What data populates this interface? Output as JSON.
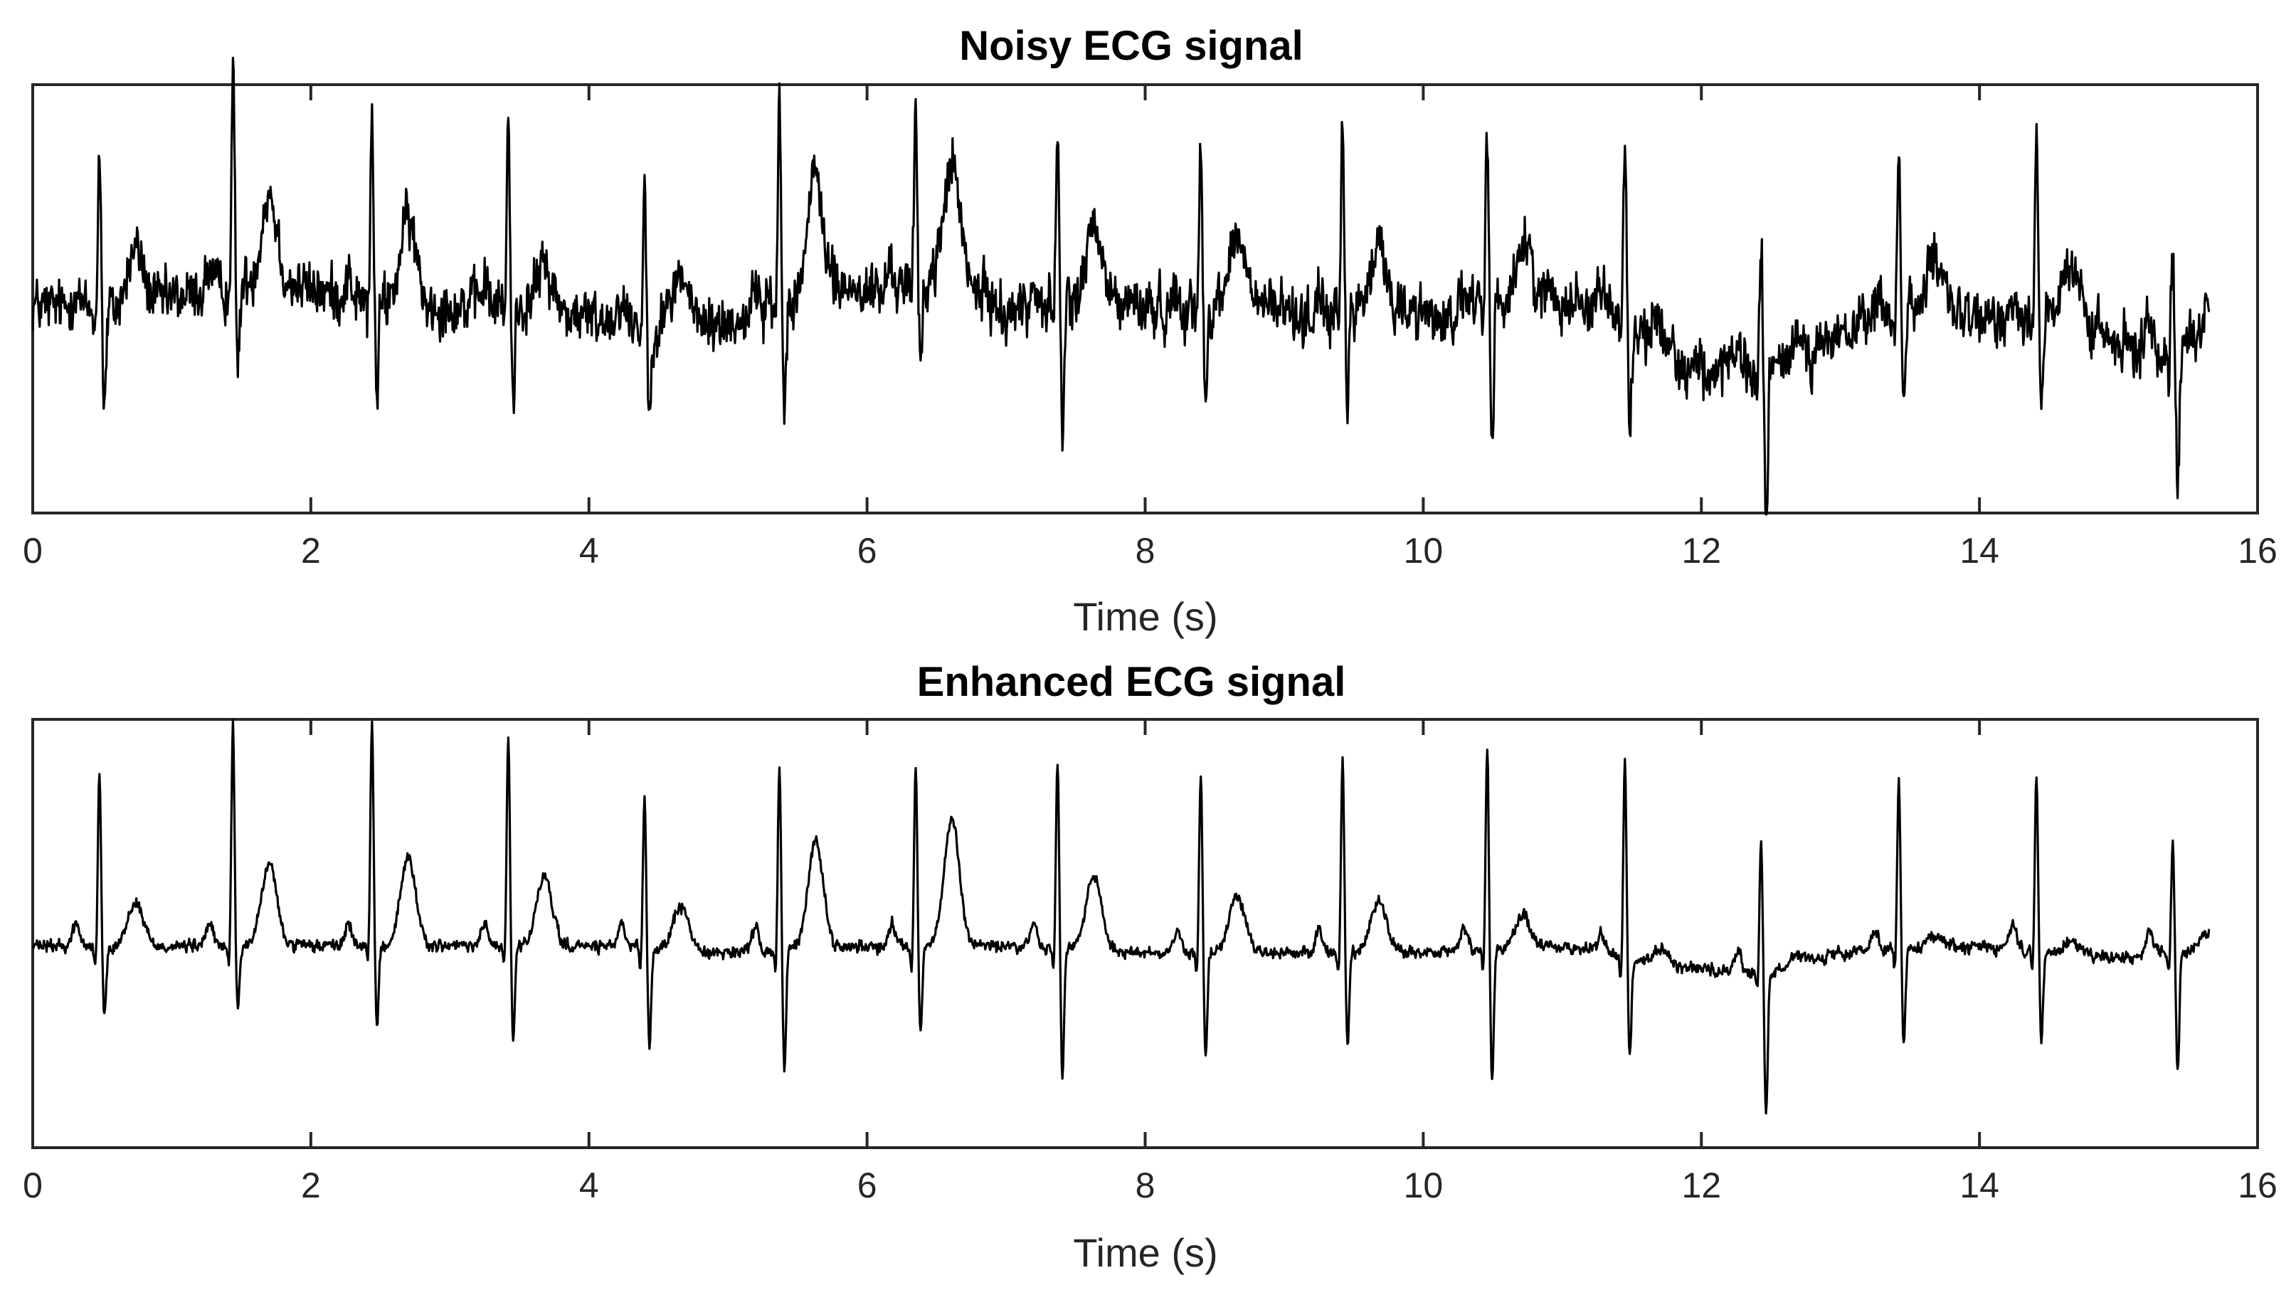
{
  "chart_data": [
    {
      "type": "line",
      "title": "Noisy ECG signal",
      "xlabel": "Time (s)",
      "ylabel": "",
      "xlim": [
        0,
        16
      ],
      "ylim": [
        -1.6,
        1.8
      ],
      "x_ticks": [
        0,
        2,
        4,
        6,
        8,
        10,
        12,
        14,
        16
      ],
      "x_tick_labels": [
        "0",
        "2",
        "4",
        "6",
        "8",
        "10",
        "12",
        "14",
        "16"
      ],
      "y_ticks_visible": false,
      "grid": false,
      "legend": "none",
      "line_color": "#000000",
      "x_range": [
        0,
        15.65
      ],
      "sample_interval": 0.005,
      "noise_level": 0.16,
      "beats": [
        {
          "t": 0.48,
          "r": 1.35,
          "s": -0.8,
          "t_wave": 0.45
        },
        {
          "t": 1.44,
          "r": 1.8,
          "s": -0.65,
          "t_wave": 0.7
        },
        {
          "t": 2.44,
          "r": 1.45,
          "s": -0.8,
          "t_wave": 0.65
        },
        {
          "t": 3.42,
          "r": 1.45,
          "s": -0.75,
          "t_wave": 0.35
        },
        {
          "t": 4.4,
          "r": 1.1,
          "s": -0.8,
          "t_wave": 0.4
        },
        {
          "t": 5.37,
          "r": 1.6,
          "s": -0.9,
          "t_wave": 0.85
        },
        {
          "t": 6.35,
          "r": 1.4,
          "s": -0.7,
          "t_wave": 0.9
        },
        {
          "t": 7.37,
          "r": 1.45,
          "s": -1.05,
          "t_wave": 0.55
        },
        {
          "t": 8.4,
          "r": 1.3,
          "s": -0.85,
          "t_wave": 0.5
        },
        {
          "t": 9.42,
          "r": 1.35,
          "s": -0.7,
          "t_wave": 0.45
        },
        {
          "t": 10.46,
          "r": 1.45,
          "s": -1.05,
          "t_wave": 0.4
        },
        {
          "t": 11.45,
          "r": 1.45,
          "s": -0.8,
          "t_wave": 0.25
        },
        {
          "t": 12.43,
          "r": 1.0,
          "s": -1.2,
          "t_wave": 0.2
        },
        {
          "t": 13.42,
          "r": 1.3,
          "s": -0.8,
          "t_wave": 0.3
        },
        {
          "t": 14.41,
          "r": 1.45,
          "s": -0.75,
          "t_wave": 0.3
        },
        {
          "t": 15.39,
          "r": 0.85,
          "s": -1.0,
          "t_wave": 0.25
        }
      ],
      "wander": [
        [
          0,
          0.05
        ],
        [
          0.5,
          0.0
        ],
        [
          1.0,
          0.1
        ],
        [
          1.7,
          0.25
        ],
        [
          2.3,
          0.1
        ],
        [
          3.0,
          0.05
        ],
        [
          3.5,
          0.05
        ],
        [
          4.0,
          -0.05
        ],
        [
          4.7,
          -0.1
        ],
        [
          5.0,
          -0.1
        ],
        [
          5.6,
          0.2
        ],
        [
          6.1,
          0.15
        ],
        [
          6.6,
          0.3
        ],
        [
          7.0,
          0.0
        ],
        [
          7.7,
          0.1
        ],
        [
          8.2,
          0.0
        ],
        [
          8.7,
          0.1
        ],
        [
          9.2,
          -0.05
        ],
        [
          9.7,
          0.05
        ],
        [
          10.2,
          -0.05
        ],
        [
          10.8,
          0.15
        ],
        [
          11.3,
          0.05
        ],
        [
          11.8,
          -0.4
        ],
        [
          12.2,
          -0.5
        ],
        [
          12.6,
          -0.45
        ],
        [
          13.0,
          -0.2
        ],
        [
          13.6,
          0.1
        ],
        [
          14.0,
          -0.1
        ],
        [
          14.6,
          0.05
        ],
        [
          15.0,
          -0.3
        ],
        [
          15.65,
          -0.25
        ]
      ]
    },
    {
      "type": "line",
      "title": "Enhanced ECG signal",
      "xlabel": "Time (s)",
      "ylabel": "",
      "xlim": [
        0,
        16
      ],
      "ylim": [
        -1.6,
        1.8
      ],
      "x_ticks": [
        0,
        2,
        4,
        6,
        8,
        10,
        12,
        14,
        16
      ],
      "x_tick_labels": [
        "0",
        "2",
        "4",
        "6",
        "8",
        "10",
        "12",
        "14",
        "16"
      ],
      "y_ticks_visible": false,
      "grid": false,
      "legend": "none",
      "line_color": "#000000",
      "x_range": [
        0,
        15.65
      ],
      "sample_interval": 0.005,
      "noise_level": 0.035,
      "beats": [
        {
          "t": 0.48,
          "r": 1.35,
          "s": -0.55,
          "t_wave": 0.35
        },
        {
          "t": 1.44,
          "r": 1.75,
          "s": -0.5,
          "t_wave": 0.65
        },
        {
          "t": 2.44,
          "r": 1.8,
          "s": -0.65,
          "t_wave": 0.7
        },
        {
          "t": 3.42,
          "r": 1.65,
          "s": -0.75,
          "t_wave": 0.55
        },
        {
          "t": 4.4,
          "r": 1.2,
          "s": -0.8,
          "t_wave": 0.35
        },
        {
          "t": 5.37,
          "r": 1.45,
          "s": -0.95,
          "t_wave": 0.85
        },
        {
          "t": 6.35,
          "r": 1.45,
          "s": -0.7,
          "t_wave": 1.0
        },
        {
          "t": 7.37,
          "r": 1.5,
          "s": -1.0,
          "t_wave": 0.6
        },
        {
          "t": 8.4,
          "r": 1.45,
          "s": -0.85,
          "t_wave": 0.45
        },
        {
          "t": 9.42,
          "r": 1.55,
          "s": -0.75,
          "t_wave": 0.4
        },
        {
          "t": 10.46,
          "r": 1.6,
          "s": -1.05,
          "t_wave": 0.25
        },
        {
          "t": 11.45,
          "r": 1.6,
          "s": -0.8,
          "t_wave": 0.1
        },
        {
          "t": 12.43,
          "r": 1.05,
          "s": -1.15,
          "t_wave": 0.1
        },
        {
          "t": 13.42,
          "r": 1.35,
          "s": -0.75,
          "t_wave": 0.1
        },
        {
          "t": 14.41,
          "r": 1.4,
          "s": -0.7,
          "t_wave": 0.1
        },
        {
          "t": 15.39,
          "r": 0.85,
          "s": -1.0,
          "t_wave": 0.1
        }
      ],
      "wander": [
        [
          0,
          0.0
        ],
        [
          1.0,
          0.0
        ],
        [
          2.0,
          0.0
        ],
        [
          3.0,
          0.0
        ],
        [
          4.0,
          0.0
        ],
        [
          5.0,
          -0.05
        ],
        [
          6.0,
          0.0
        ],
        [
          7.0,
          0.0
        ],
        [
          8.0,
          -0.05
        ],
        [
          9.0,
          -0.05
        ],
        [
          10.0,
          -0.05
        ],
        [
          11.0,
          0.0
        ],
        [
          11.8,
          -0.15
        ],
        [
          12.1,
          -0.2
        ],
        [
          12.6,
          -0.2
        ],
        [
          13.0,
          -0.05
        ],
        [
          14.0,
          0.0
        ],
        [
          15.0,
          -0.1
        ],
        [
          15.65,
          0.0
        ]
      ]
    }
  ]
}
